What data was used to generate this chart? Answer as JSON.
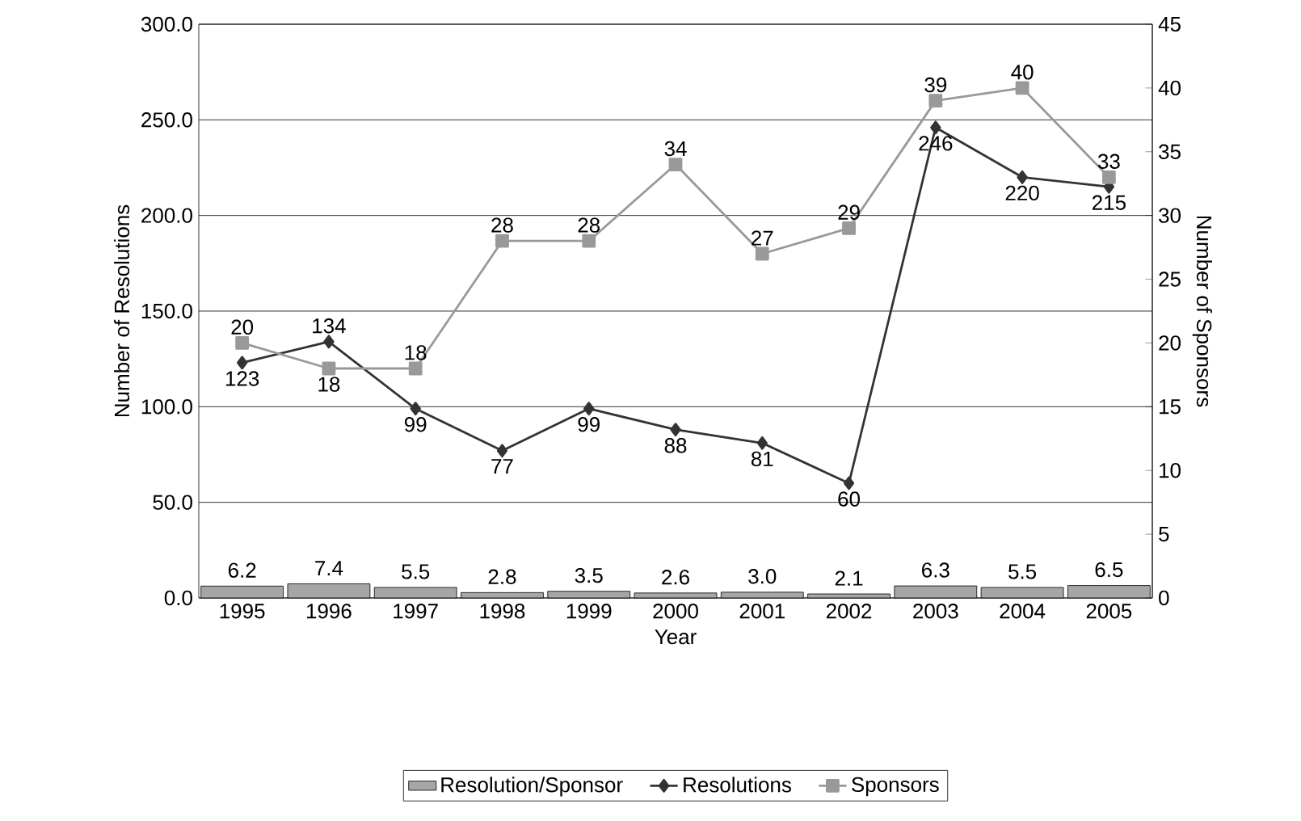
{
  "chart_data": {
    "type": "line",
    "xlabel": "Year",
    "ylabel": "Number of Resolutions",
    "y2label": "Number of Sponsors",
    "categories": [
      "1995",
      "1996",
      "1997",
      "1998",
      "1999",
      "2000",
      "2001",
      "2002",
      "2003",
      "2004",
      "2005"
    ],
    "ylim": [
      0,
      300
    ],
    "yticks": [
      {
        "value": 0,
        "label": "0.0"
      },
      {
        "value": 50,
        "label": "50.0"
      },
      {
        "value": 100,
        "label": "100.0"
      },
      {
        "value": 150,
        "label": "150.0"
      },
      {
        "value": 200,
        "label": "200.0"
      },
      {
        "value": 250,
        "label": "250.0"
      },
      {
        "value": 300,
        "label": "300.0"
      }
    ],
    "y2lim": [
      0,
      45
    ],
    "y2ticks": [
      0,
      5,
      10,
      15,
      20,
      25,
      30,
      35,
      40,
      45
    ],
    "grid": "y",
    "legend": "bottom",
    "data_labels": true,
    "series": [
      {
        "name": "Resolution/Sponsor",
        "type": "bar",
        "color": "#a6a6a6",
        "values": [
          6.2,
          7.4,
          5.5,
          2.8,
          3.5,
          2.6,
          3.0,
          2.1,
          6.3,
          5.5,
          6.5
        ],
        "value_labels": [
          "6.2",
          "7.4",
          "5.5",
          "2.8",
          "3.5",
          "2.6",
          "3.0",
          "2.1",
          "6.3",
          "5.5",
          "6.5"
        ]
      },
      {
        "name": "Resolutions",
        "marker": "diamond",
        "line_style": "solid",
        "color": "#333333",
        "values": [
          123,
          134,
          99,
          77,
          99,
          88,
          81,
          60,
          246,
          220,
          215
        ]
      },
      {
        "name": "Sponsors",
        "marker": "square",
        "line_style": "solid",
        "color": "#999999",
        "axis": "y2",
        "values": [
          20,
          18,
          18,
          28,
          28,
          34,
          27,
          29,
          39,
          40,
          33
        ]
      }
    ]
  }
}
